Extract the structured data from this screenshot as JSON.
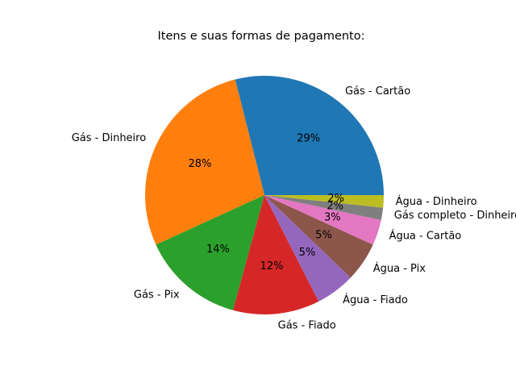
{
  "chart_data": {
    "type": "pie",
    "title": "Itens e suas formas de pagamento:",
    "slices": [
      {
        "label": "Gás - Cartão",
        "percent_label": "29%",
        "value": 29.3,
        "color": "#1f77b4"
      },
      {
        "label": "Gás - Dinheiro",
        "percent_label": "28%",
        "value": 28.2,
        "color": "#ff7f0e"
      },
      {
        "label": "Gás - Pix",
        "percent_label": "14%",
        "value": 14.1,
        "color": "#2ca02c"
      },
      {
        "label": "Gás - Fiado",
        "percent_label": "12%",
        "value": 11.9,
        "color": "#d62728"
      },
      {
        "label": "Água - Fiado",
        "percent_label": "5%",
        "value": 5.4,
        "color": "#9467bd"
      },
      {
        "label": "Água - Pix",
        "percent_label": "5%",
        "value": 5.4,
        "color": "#8c564b"
      },
      {
        "label": "Água - Cartão",
        "percent_label": "3%",
        "value": 3.5,
        "color": "#e377c2"
      },
      {
        "label": "Gás completo - Dinheiro",
        "percent_label": "2%",
        "value": 1.7,
        "color": "#7f7f7f"
      },
      {
        "label": "Água - Dinheiro",
        "percent_label": "2%",
        "value": 1.7,
        "color": "#bcbd22"
      }
    ],
    "start_angle": 0,
    "direction": "counterclockwise"
  }
}
